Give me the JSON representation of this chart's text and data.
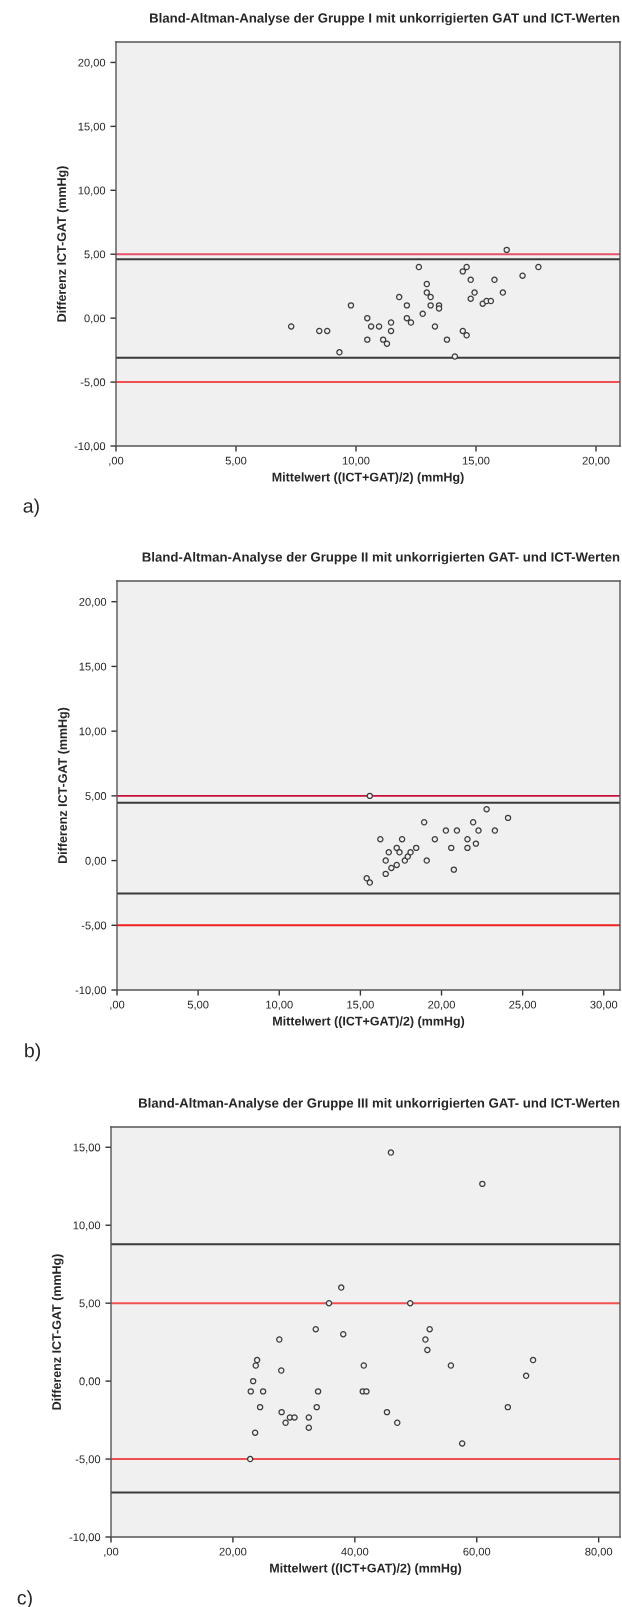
{
  "chart_data": [
    {
      "type": "scatter",
      "title": "Bland-Altman-Analyse der Gruppe I mit unkorrigierten GAT und ICT-Werten",
      "xlabel": "Mittelwert ((ICT+GAT)/2) (mmHg)",
      "ylabel": "Differenz ICT-GAT (mmHg)",
      "annotations": [
        "a)"
      ],
      "x": [
        7.3,
        8.47,
        8.8,
        9.31,
        9.79,
        10.47,
        10.47,
        10.63,
        10.96,
        11.13,
        11.29,
        11.46,
        11.46,
        11.8,
        12.12,
        12.12,
        12.29,
        12.62,
        12.78,
        12.95,
        12.95,
        13.11,
        13.11,
        13.29,
        13.46,
        13.46,
        13.79,
        14.12,
        14.45,
        14.45,
        14.61,
        14.61,
        14.78,
        14.78,
        14.94,
        15.28,
        15.44,
        15.62,
        15.77,
        16.12,
        16.28,
        16.94,
        17.6
      ],
      "values": [
        -0.65,
        -1.0,
        -1.0,
        -2.67,
        1.0,
        0.0,
        -1.68,
        -0.65,
        -0.65,
        -1.68,
        -2.0,
        -0.34,
        -1.0,
        1.65,
        1.0,
        0.0,
        -0.34,
        4.0,
        0.34,
        2.67,
        2.0,
        1.65,
        1.0,
        -0.65,
        1.0,
        0.76,
        -1.68,
        -3.0,
        3.66,
        -1.0,
        4.0,
        -1.34,
        3.0,
        1.52,
        2.0,
        1.13,
        1.34,
        1.34,
        3.0,
        2.0,
        5.34,
        3.32,
        4.0
      ],
      "color": "#3a3a3a",
      "marker": "circle",
      "xlim": [
        0,
        21
      ],
      "ylim": [
        -10,
        21.6
      ],
      "xticks": [
        {
          "value": 0,
          "label": ",00"
        },
        {
          "value": 5,
          "label": "5,00"
        },
        {
          "value": 10,
          "label": "10,00"
        },
        {
          "value": 15,
          "label": "15,00"
        },
        {
          "value": 20,
          "label": "20,00"
        }
      ],
      "yticks": [
        {
          "value": -10,
          "label": "-10,00"
        },
        {
          "value": -5,
          "label": "-5,00"
        },
        {
          "value": 0,
          "label": "0,00"
        },
        {
          "value": 5,
          "label": "5,00"
        },
        {
          "value": 10,
          "label": "10,00"
        },
        {
          "value": 15,
          "label": "15,00"
        },
        {
          "value": 20,
          "label": "20,00"
        }
      ],
      "ref_lines": [
        {
          "axis": "y",
          "value": 5,
          "color": "#e8506a"
        },
        {
          "axis": "y",
          "value": 4.61,
          "color": "#3a3a3a"
        },
        {
          "axis": "y",
          "value": -3.09,
          "color": "#3a3a3a"
        },
        {
          "axis": "y",
          "value": -5,
          "color": "#f05050"
        }
      ],
      "grid": false,
      "legend": false
    },
    {
      "type": "scatter",
      "title": "Bland-Altman-Analyse der Gruppe II mit unkorrigierten GAT- und ICT-Werten",
      "xlabel": "Mittelwert ((ICT+GAT)/2) (mmHg)",
      "ylabel": "Differenz ICT-GAT (mmHg)",
      "annotations": [
        "b)"
      ],
      "x": [
        15.58,
        15.39,
        15.58,
        16.23,
        16.56,
        16.56,
        16.75,
        16.91,
        17.24,
        17.24,
        17.41,
        17.57,
        17.74,
        17.92,
        18.09,
        18.44,
        18.93,
        19.09,
        19.59,
        20.27,
        20.6,
        20.76,
        20.95,
        21.6,
        21.6,
        21.95,
        22.12,
        22.28,
        22.78,
        23.29,
        24.1
      ],
      "values": [
        5.0,
        -1.37,
        -1.7,
        1.65,
        0.0,
        -1.03,
        0.64,
        -0.57,
        0.98,
        -0.34,
        0.64,
        1.65,
        0.0,
        0.31,
        0.64,
        0.98,
        2.96,
        0.0,
        1.65,
        2.32,
        0.98,
        -0.7,
        2.32,
        1.65,
        0.98,
        2.96,
        1.31,
        2.32,
        3.97,
        2.32,
        3.3
      ],
      "color": "#3a3a3a",
      "marker": "circle",
      "xlim": [
        0,
        31
      ],
      "ylim": [
        -10,
        21.6
      ],
      "xticks": [
        {
          "value": 0,
          "label": ",00"
        },
        {
          "value": 5,
          "label": "5,00"
        },
        {
          "value": 10,
          "label": "10,00"
        },
        {
          "value": 15,
          "label": "15,00"
        },
        {
          "value": 20,
          "label": "20,00"
        },
        {
          "value": 25,
          "label": "25,00"
        },
        {
          "value": 30,
          "label": "30,00"
        }
      ],
      "yticks": [
        {
          "value": -10,
          "label": "-10,00"
        },
        {
          "value": -5,
          "label": "-5,00"
        },
        {
          "value": 0,
          "label": "0,00"
        },
        {
          "value": 5,
          "label": "5,00"
        },
        {
          "value": 10,
          "label": "10,00"
        },
        {
          "value": 15,
          "label": "15,00"
        },
        {
          "value": 20,
          "label": "20,00"
        }
      ],
      "ref_lines": [
        {
          "axis": "y",
          "value": 5,
          "color": "#c8103c"
        },
        {
          "axis": "y",
          "value": 4.46,
          "color": "#3a3a3a"
        },
        {
          "axis": "y",
          "value": -2.55,
          "color": "#3a3a3a"
        },
        {
          "axis": "y",
          "value": -5,
          "color": "#f02020"
        }
      ],
      "grid": false,
      "legend": false
    },
    {
      "type": "scatter",
      "title": "Bland-Altman-Analyse der Gruppe III mit unkorrigierten GAT- und ICT-Werten",
      "xlabel": "Mittelwert ((ICT+GAT)/2) (mmHg)",
      "ylabel": "Differenz ICT-GAT (mmHg)",
      "annotations": [
        "c)"
      ],
      "x": [
        45.92,
        60.92,
        37.77,
        35.76,
        49.08,
        33.59,
        52.28,
        38.1,
        27.61,
        51.58,
        51.9,
        23.97,
        69.24,
        23.75,
        41.47,
        55.76,
        27.93,
        68.1,
        23.32,
        22.93,
        24.95,
        33.97,
        41.3,
        41.9,
        24.46,
        33.75,
        65.1,
        27.99,
        45.27,
        29.35,
        30.11,
        32.45,
        28.64,
        46.96,
        32.45,
        23.64,
        57.61,
        22.83
      ],
      "values": [
        14.66,
        12.65,
        6.0,
        5.0,
        5.0,
        3.33,
        3.33,
        3.01,
        2.67,
        2.67,
        2.0,
        1.35,
        1.35,
        1.0,
        1.0,
        1.0,
        0.68,
        0.34,
        0.0,
        -0.66,
        -0.66,
        -0.66,
        -0.66,
        -0.66,
        -1.67,
        -1.67,
        -1.67,
        -1.99,
        -1.99,
        -2.33,
        -2.33,
        -2.33,
        -2.67,
        -2.67,
        -2.99,
        -3.31,
        -4.0,
        -5.0
      ],
      "color": "#3a3a3a",
      "marker": "circle",
      "xlim": [
        0,
        83.5
      ],
      "ylim": [
        -10,
        16.3
      ],
      "xticks": [
        {
          "value": 0,
          "label": ",00"
        },
        {
          "value": 20,
          "label": "20,00"
        },
        {
          "value": 40,
          "label": "40,00"
        },
        {
          "value": 60,
          "label": "60,00"
        },
        {
          "value": 80,
          "label": "80,00"
        }
      ],
      "yticks": [
        {
          "value": -10,
          "label": "-10,00"
        },
        {
          "value": -5,
          "label": "-5,00"
        },
        {
          "value": 0,
          "label": "0,00"
        },
        {
          "value": 5,
          "label": "5,00"
        },
        {
          "value": 10,
          "label": "10,00"
        },
        {
          "value": 15,
          "label": "15,00"
        }
      ],
      "ref_lines": [
        {
          "axis": "y",
          "value": 8.78,
          "color": "#3a3a3a"
        },
        {
          "axis": "y",
          "value": 5,
          "color": "#f05050"
        },
        {
          "axis": "y",
          "value": -5,
          "color": "#f05050"
        },
        {
          "axis": "y",
          "value": -7.14,
          "color": "#3a3a3a"
        }
      ],
      "grid": false,
      "legend": false
    }
  ]
}
